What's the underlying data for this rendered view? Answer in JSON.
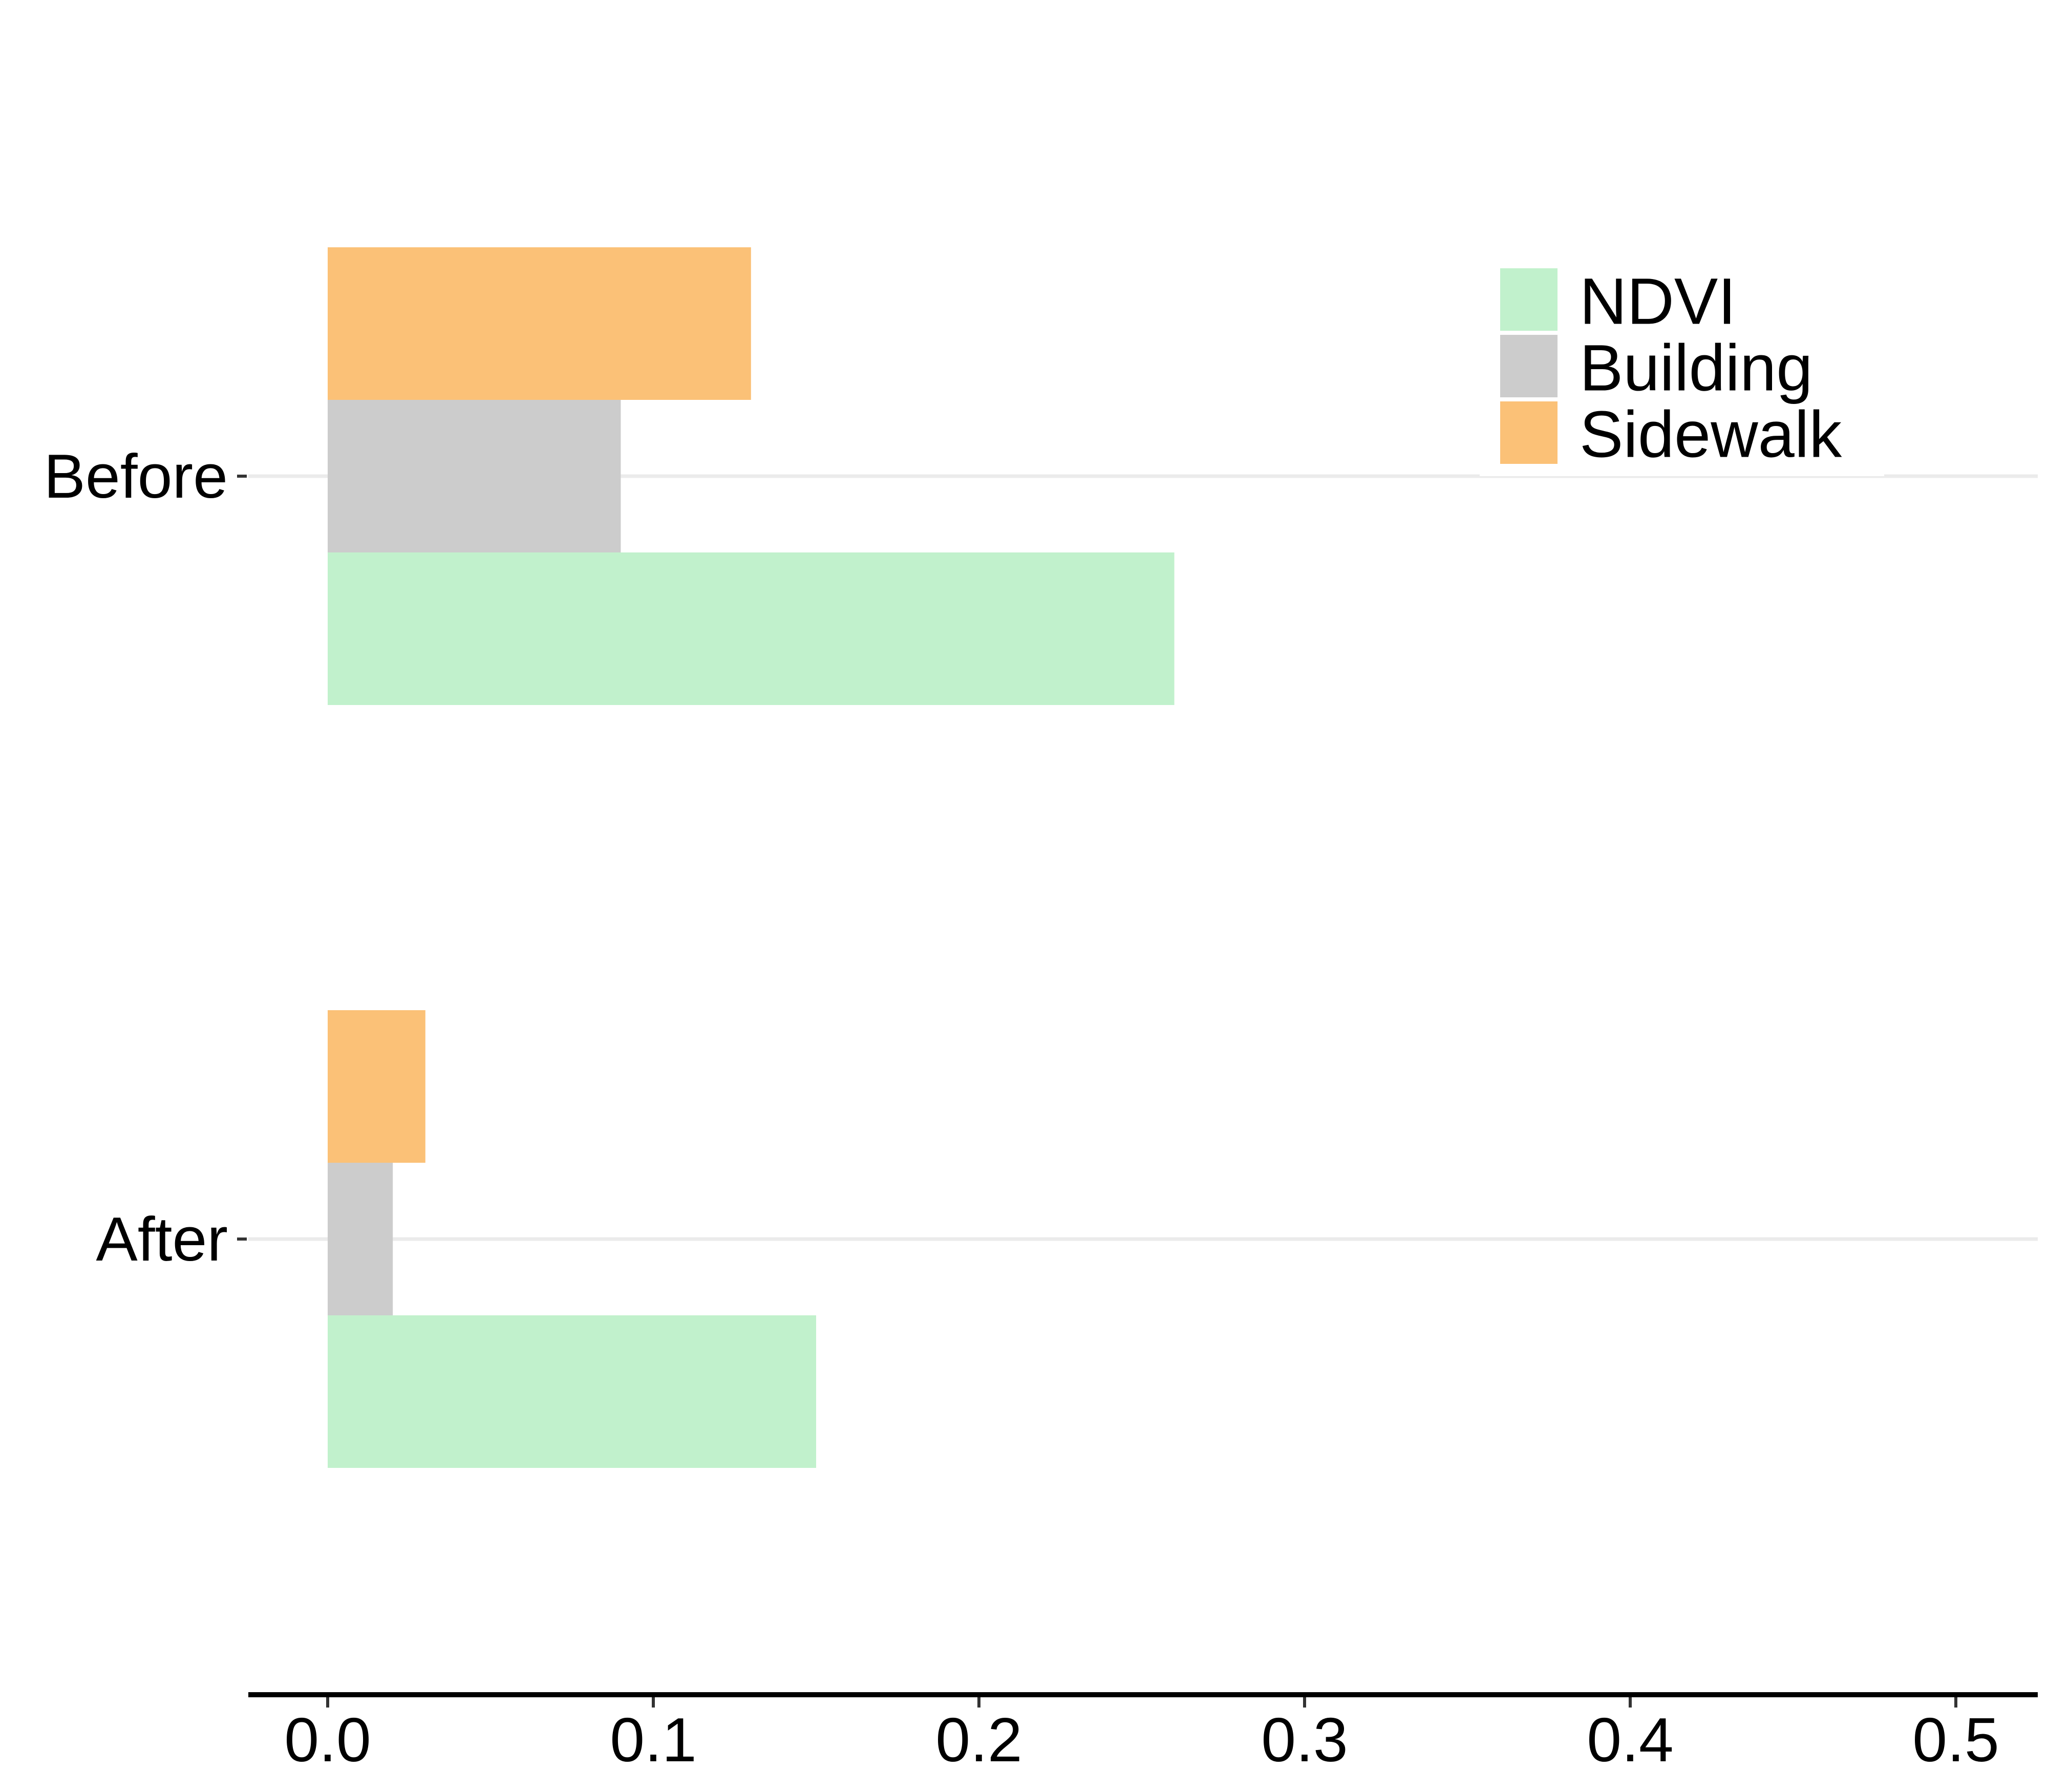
{
  "chart_data": {
    "type": "bar",
    "orientation": "horizontal",
    "categories": [
      "Before",
      "After"
    ],
    "series": [
      {
        "name": "NDVI",
        "color": "#c1f1cc",
        "values": [
          0.26,
          0.15
        ]
      },
      {
        "name": "Building",
        "color": "#cccccc",
        "values": [
          0.09,
          0.02
        ]
      },
      {
        "name": "Sidewalk",
        "color": "#fbc177",
        "values": [
          0.13,
          0.03
        ]
      }
    ],
    "xlim": [
      -0.025,
      0.525
    ],
    "xticks": [
      "0.0",
      "0.1",
      "0.2",
      "0.3",
      "0.4",
      "0.5"
    ],
    "xtick_values": [
      0.0,
      0.1,
      0.2,
      0.3,
      0.4,
      0.5
    ],
    "title": "",
    "xlabel": "",
    "ylabel": "",
    "grid": "horizontal-major",
    "legend_position": "top-right"
  }
}
